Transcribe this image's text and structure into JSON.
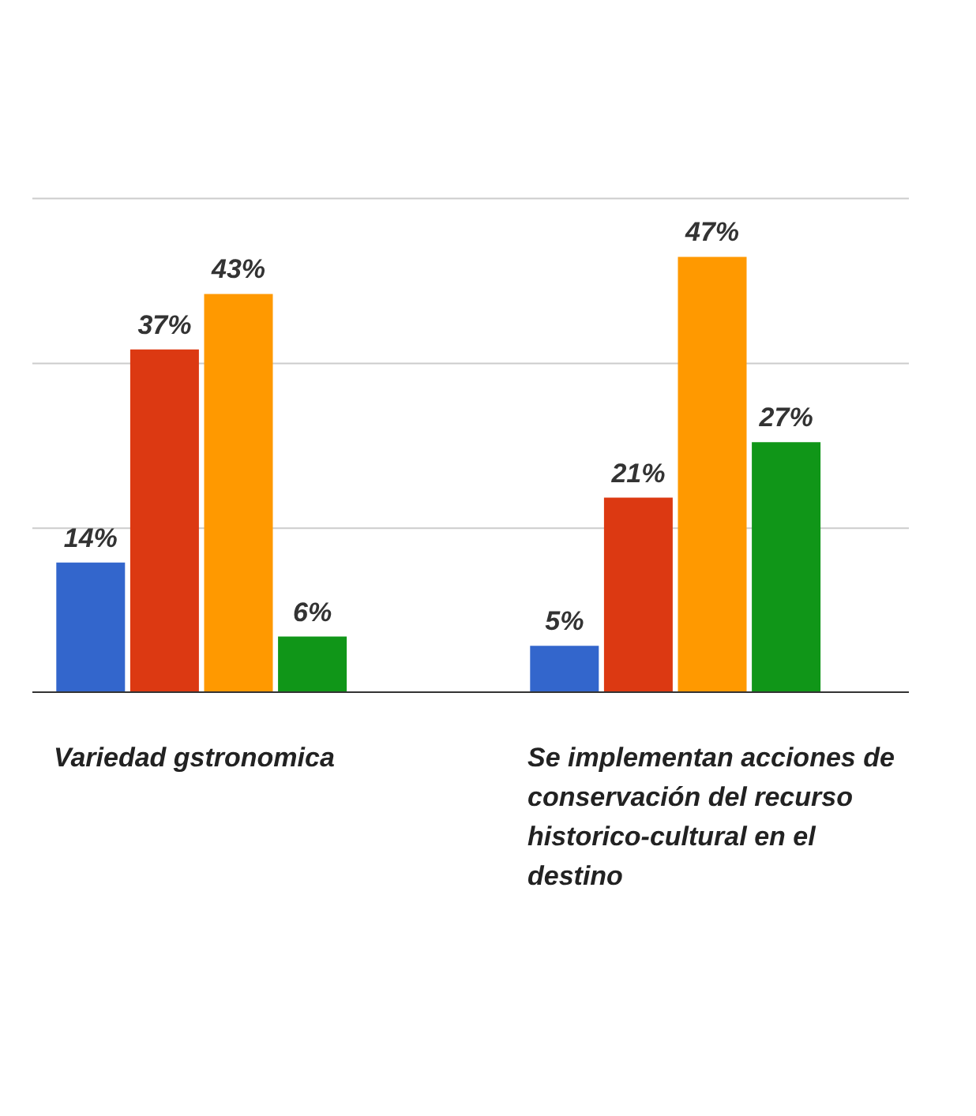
{
  "chart_data": {
    "type": "bar",
    "categories": [
      "Variedad gstronomica",
      "Se implementan acciones de conservación del recurso historico-cultural en el destino"
    ],
    "series": [
      {
        "color": "#3366cc",
        "values": [
          14,
          5
        ],
        "value_labels": [
          "14%",
          "5%"
        ]
      },
      {
        "color": "#dc3912",
        "values": [
          37,
          21
        ],
        "value_labels": [
          "37%",
          "21%"
        ]
      },
      {
        "color": "#ff9900",
        "values": [
          43,
          47
        ],
        "value_labels": [
          "43%",
          "47%"
        ]
      },
      {
        "color": "#109618",
        "values": [
          6,
          27
        ],
        "value_labels": [
          "6%",
          "27%"
        ]
      }
    ],
    "ref_lines": [
      {
        "axis": "y",
        "value": 17.7,
        "color": "#cccccc"
      },
      {
        "axis": "y",
        "value": 35.5,
        "color": "#cccccc"
      },
      {
        "axis": "y",
        "value": 53.3,
        "color": "#cccccc"
      }
    ],
    "tick_labels": false
  }
}
